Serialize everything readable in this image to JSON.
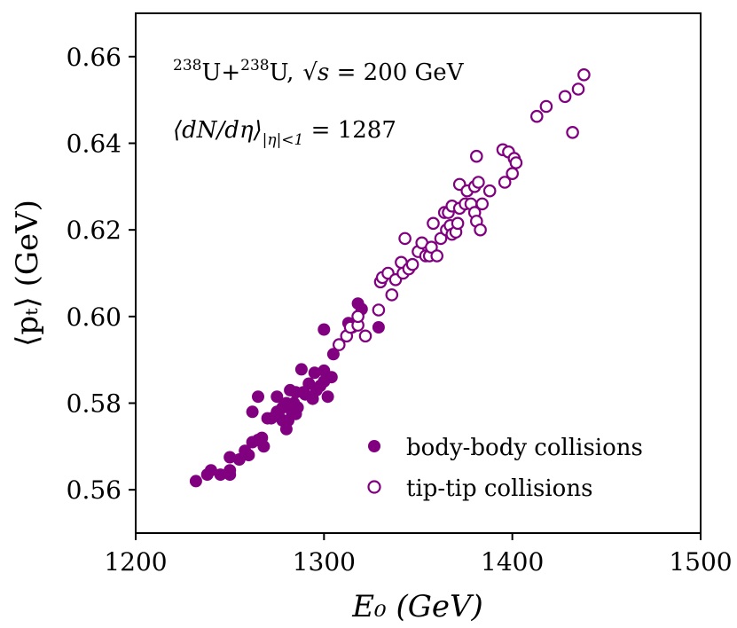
{
  "colors": {
    "series": "#800080",
    "frame": "#000000"
  },
  "chart_data": {
    "type": "scatter",
    "title": "",
    "xlabel": "E₀ (GeV)",
    "ylabel": "⟨pₜ⟩ (GeV)",
    "xlim": [
      1200,
      1500
    ],
    "ylim": [
      0.55,
      0.67
    ],
    "xticks": [
      1200,
      1300,
      1400,
      1500
    ],
    "yticks": [
      0.56,
      0.58,
      0.6,
      0.62,
      0.64,
      0.66
    ],
    "xtick_labels": [
      "1200",
      "1300",
      "1400",
      "1500"
    ],
    "ytick_labels": [
      "0.56",
      "0.58",
      "0.60",
      "0.62",
      "0.64",
      "0.66"
    ],
    "grid": false,
    "legend_position": "bottom-right",
    "annotations": {
      "line1": {
        "u1": "238",
        "text1": "U+",
        "u2": "238",
        "text2": "U,",
        "sqrt_s": "√s",
        "text3": " = 200 GeV"
      },
      "line2": {
        "text": "⟨dN/dη⟩",
        "sub": "|η|<1",
        "text2": " = 1287"
      }
    },
    "series": [
      {
        "name": "body-body collisions",
        "marker": "filled",
        "points": [
          [
            1232,
            0.562
          ],
          [
            1238,
            0.5635
          ],
          [
            1240,
            0.5645
          ],
          [
            1245,
            0.5635
          ],
          [
            1250,
            0.5635
          ],
          [
            1250,
            0.5645
          ],
          [
            1250,
            0.5675
          ],
          [
            1255,
            0.567
          ],
          [
            1258,
            0.569
          ],
          [
            1260,
            0.568
          ],
          [
            1262,
            0.571
          ],
          [
            1262,
            0.578
          ],
          [
            1265,
            0.5715
          ],
          [
            1265,
            0.5815
          ],
          [
            1267,
            0.572
          ],
          [
            1268,
            0.57
          ],
          [
            1270,
            0.5765
          ],
          [
            1272,
            0.5765
          ],
          [
            1275,
            0.578
          ],
          [
            1275,
            0.5815
          ],
          [
            1276,
            0.577
          ],
          [
            1278,
            0.576
          ],
          [
            1278,
            0.579
          ],
          [
            1280,
            0.574
          ],
          [
            1280,
            0.58
          ],
          [
            1281,
            0.576
          ],
          [
            1282,
            0.583
          ],
          [
            1283,
            0.578
          ],
          [
            1284,
            0.58
          ],
          [
            1285,
            0.5775
          ],
          [
            1285,
            0.5825
          ],
          [
            1286,
            0.579
          ],
          [
            1288,
            0.5878
          ],
          [
            1289,
            0.5825
          ],
          [
            1290,
            0.582
          ],
          [
            1292,
            0.5845
          ],
          [
            1294,
            0.581
          ],
          [
            1295,
            0.587
          ],
          [
            1296,
            0.583
          ],
          [
            1298,
            0.584
          ],
          [
            1300,
            0.585
          ],
          [
            1300,
            0.5875
          ],
          [
            1300,
            0.597
          ],
          [
            1302,
            0.5815
          ],
          [
            1304,
            0.586
          ],
          [
            1305,
            0.5913
          ],
          [
            1313,
            0.5985
          ],
          [
            1315,
            0.5975
          ],
          [
            1318,
            0.603
          ],
          [
            1320,
            0.6017
          ],
          [
            1329,
            0.5975
          ]
        ]
      },
      {
        "name": "tip-tip collisions",
        "marker": "open",
        "points": [
          [
            1308,
            0.5935
          ],
          [
            1312,
            0.5955
          ],
          [
            1314,
            0.5975
          ],
          [
            1318,
            0.598
          ],
          [
            1318,
            0.6
          ],
          [
            1322,
            0.5955
          ],
          [
            1329,
            0.6015
          ],
          [
            1330,
            0.608
          ],
          [
            1331,
            0.609
          ],
          [
            1334,
            0.61
          ],
          [
            1336,
            0.605
          ],
          [
            1338,
            0.6085
          ],
          [
            1341,
            0.6125
          ],
          [
            1342,
            0.61
          ],
          [
            1343,
            0.618
          ],
          [
            1345,
            0.611
          ],
          [
            1347,
            0.612
          ],
          [
            1350,
            0.615
          ],
          [
            1352,
            0.617
          ],
          [
            1354,
            0.614
          ],
          [
            1356,
            0.614
          ],
          [
            1357,
            0.616
          ],
          [
            1358,
            0.6215
          ],
          [
            1360,
            0.614
          ],
          [
            1362,
            0.618
          ],
          [
            1364,
            0.624
          ],
          [
            1365,
            0.62
          ],
          [
            1366,
            0.624
          ],
          [
            1367,
            0.621
          ],
          [
            1368,
            0.619
          ],
          [
            1368,
            0.6255
          ],
          [
            1370,
            0.6195
          ],
          [
            1371,
            0.6215
          ],
          [
            1372,
            0.625
          ],
          [
            1372,
            0.6305
          ],
          [
            1375,
            0.626
          ],
          [
            1376,
            0.629
          ],
          [
            1378,
            0.626
          ],
          [
            1380,
            0.624
          ],
          [
            1380,
            0.63
          ],
          [
            1381,
            0.622
          ],
          [
            1381,
            0.637
          ],
          [
            1382,
            0.631
          ],
          [
            1383,
            0.62
          ],
          [
            1384,
            0.626
          ],
          [
            1388,
            0.629
          ],
          [
            1395,
            0.6385
          ],
          [
            1396,
            0.631
          ],
          [
            1398,
            0.638
          ],
          [
            1400,
            0.633
          ],
          [
            1401,
            0.6365
          ],
          [
            1402,
            0.6355
          ],
          [
            1413,
            0.6462
          ],
          [
            1418,
            0.6485
          ],
          [
            1428,
            0.6508
          ],
          [
            1432,
            0.6425
          ],
          [
            1435,
            0.6525
          ],
          [
            1438,
            0.6558
          ]
        ]
      }
    ]
  }
}
